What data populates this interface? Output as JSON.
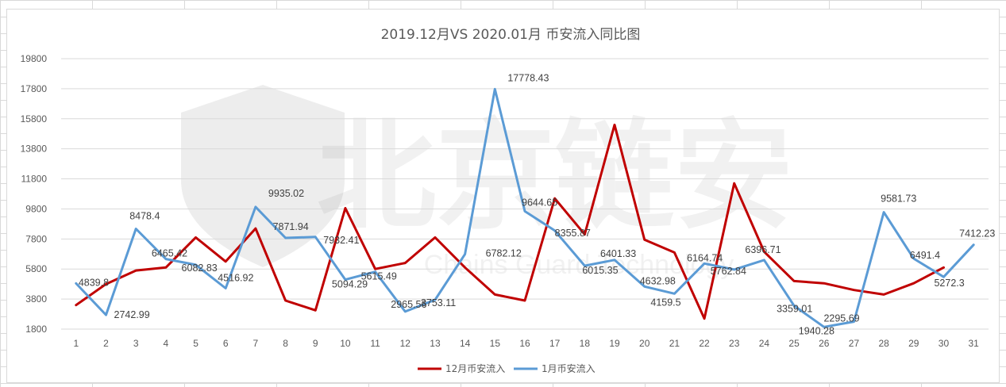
{
  "chart_data": {
    "type": "line",
    "title": "2019.12月VS 2020.01月 币安流入同比图",
    "xlabel": "",
    "ylabel": "",
    "ylim": [
      1800,
      19800
    ],
    "yticks": [
      1800,
      3800,
      5800,
      7800,
      9800,
      11800,
      13800,
      15800,
      17800,
      19800
    ],
    "categories": [
      "1",
      "2",
      "3",
      "4",
      "5",
      "6",
      "7",
      "8",
      "9",
      "10",
      "11",
      "12",
      "13",
      "14",
      "15",
      "16",
      "17",
      "18",
      "19",
      "20",
      "21",
      "22",
      "23",
      "24",
      "25",
      "26",
      "27",
      "28",
      "29",
      "30",
      "31"
    ],
    "grid": "horizontal",
    "legend_position": "bottom",
    "series": [
      {
        "name": "12月币安流入",
        "color": "#c00000",
        "values": [
          3400,
          4800,
          5700,
          5900,
          7900,
          6300,
          8500,
          3700,
          3050,
          9850,
          5800,
          6200,
          7900,
          5900,
          4100,
          3700,
          10500,
          8100,
          15400,
          7750,
          6900,
          2500,
          11500,
          6950,
          5000,
          4850,
          4400,
          4100,
          4850,
          5900,
          null
        ],
        "labels": []
      },
      {
        "name": "1月币安流入",
        "color": "#5b9bd5",
        "values": [
          4839.8,
          2742.99,
          8478.4,
          6465.42,
          6082.83,
          4516.92,
          9935.02,
          7871.94,
          7932.41,
          5094.29,
          5615.49,
          2965.56,
          3753.11,
          6782.12,
          17778.43,
          9644.65,
          8355.87,
          6015.35,
          6401.33,
          4632.98,
          4159.5,
          6164.74,
          5762.84,
          6396.71,
          3359.01,
          1940.28,
          2295.69,
          9581.73,
          6491.4,
          5272.3,
          7412.23
        ],
        "labels": [
          "4839.8",
          "2742.99",
          "8478.4",
          "6465.42",
          "6082.83",
          "4516.92",
          "9935.02",
          "7871.94",
          "7932.41",
          "5094.29",
          "5615.49",
          "2965.56",
          "3753.11",
          "6782.12",
          "17778.43",
          "9644.65",
          "8355.87",
          "6015.35",
          "6401.33",
          "4632.98",
          "4159.5",
          "6164.74",
          "5762.84",
          "6396.71",
          "3359.01",
          "1940.28",
          "2295.69",
          "9581.73",
          "6491.4",
          "5272.3",
          "7412.23"
        ]
      }
    ]
  },
  "watermark": {
    "text": "北京链安",
    "subtext": "Chains Guard Technology"
  }
}
